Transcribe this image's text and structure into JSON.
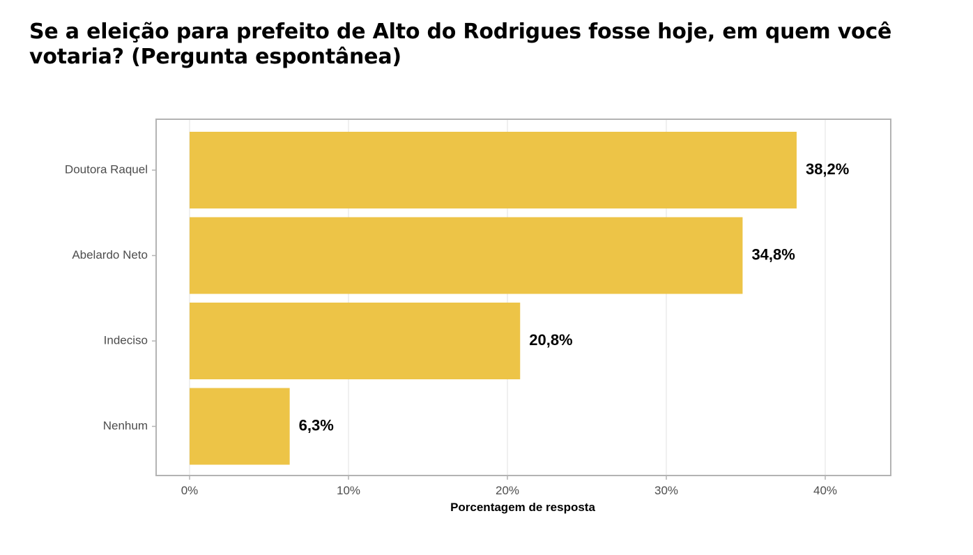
{
  "chart_data": {
    "type": "bar",
    "orientation": "horizontal",
    "title": "Se a eleição para prefeito de Alto do Rodrigues fosse hoje, em quem você votaria? (Pergunta espontânea)",
    "xlabel": "Porcentagem de resposta",
    "ylabel": "",
    "categories": [
      "Doutora Raquel",
      "Abelardo Neto",
      "Indeciso",
      "Nenhum"
    ],
    "values": [
      38.2,
      34.8,
      20.8,
      6.3
    ],
    "value_labels": [
      "38,2%",
      "34,8%",
      "20,8%",
      "6,3%"
    ],
    "xlim": [
      0,
      44
    ],
    "x_ticks": [
      0,
      10,
      20,
      30,
      40
    ],
    "x_tick_labels": [
      "0%",
      "10%",
      "20%",
      "30%",
      "40%"
    ],
    "grid": true,
    "legend": "none",
    "colors": {
      "bar": "#EDC447",
      "grid": "#E5E5E5",
      "border": "#B3B3B3"
    }
  }
}
